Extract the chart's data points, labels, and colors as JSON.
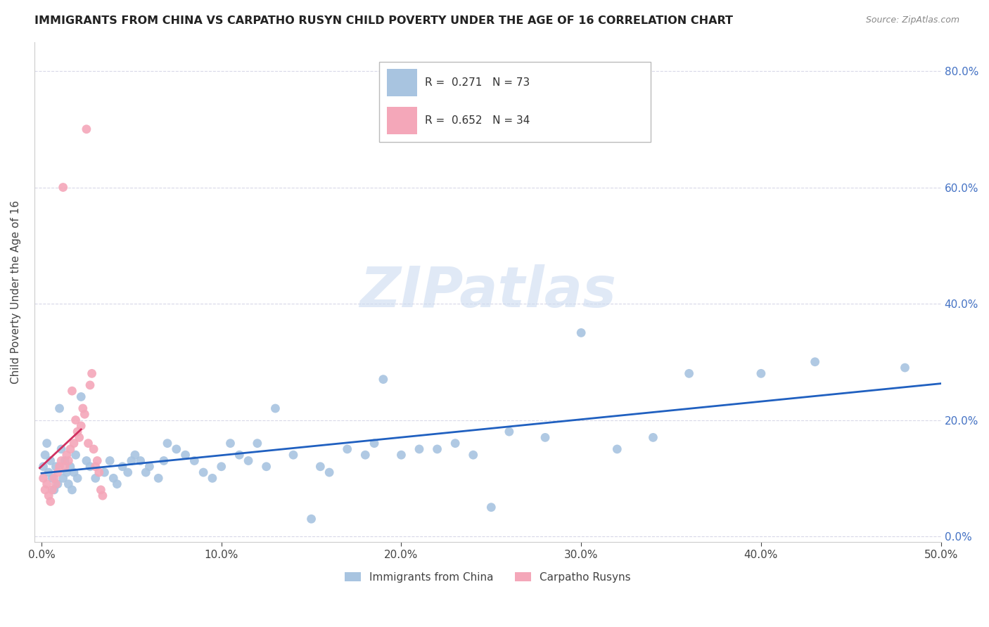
{
  "title": "IMMIGRANTS FROM CHINA VS CARPATHO RUSYN CHILD POVERTY UNDER THE AGE OF 16 CORRELATION CHART",
  "source": "Source: ZipAtlas.com",
  "ylabel_label": "Child Poverty Under the Age of 16",
  "legend_label1": "Immigrants from China",
  "legend_label2": "Carpatho Rusyns",
  "R1": 0.271,
  "N1": 73,
  "R2": 0.652,
  "N2": 34,
  "color_china": "#a8c4e0",
  "color_rusyn": "#f4a7b9",
  "trendline_china": "#2060c0",
  "trendline_rusyn": "#d03060",
  "watermark": "ZIPatlas",
  "xlim": [
    0.0,
    0.5
  ],
  "ylim": [
    0.0,
    0.85
  ],
  "china_scatter_x": [
    0.001,
    0.002,
    0.003,
    0.004,
    0.005,
    0.006,
    0.007,
    0.008,
    0.009,
    0.01,
    0.011,
    0.012,
    0.013,
    0.014,
    0.015,
    0.016,
    0.017,
    0.018,
    0.019,
    0.02,
    0.022,
    0.025,
    0.027,
    0.03,
    0.035,
    0.038,
    0.04,
    0.042,
    0.045,
    0.048,
    0.05,
    0.052,
    0.055,
    0.058,
    0.06,
    0.065,
    0.068,
    0.07,
    0.075,
    0.08,
    0.085,
    0.09,
    0.095,
    0.1,
    0.105,
    0.11,
    0.115,
    0.12,
    0.125,
    0.13,
    0.14,
    0.15,
    0.155,
    0.16,
    0.17,
    0.18,
    0.185,
    0.19,
    0.2,
    0.21,
    0.22,
    0.23,
    0.24,
    0.25,
    0.26,
    0.28,
    0.3,
    0.32,
    0.34,
    0.36,
    0.4,
    0.43,
    0.48
  ],
  "china_scatter_y": [
    0.12,
    0.14,
    0.16,
    0.11,
    0.13,
    0.1,
    0.08,
    0.12,
    0.09,
    0.22,
    0.15,
    0.1,
    0.13,
    0.11,
    0.09,
    0.12,
    0.08,
    0.11,
    0.14,
    0.1,
    0.24,
    0.13,
    0.12,
    0.1,
    0.11,
    0.13,
    0.1,
    0.09,
    0.12,
    0.11,
    0.13,
    0.14,
    0.13,
    0.11,
    0.12,
    0.1,
    0.13,
    0.16,
    0.15,
    0.14,
    0.13,
    0.11,
    0.1,
    0.12,
    0.16,
    0.14,
    0.13,
    0.16,
    0.12,
    0.22,
    0.14,
    0.03,
    0.12,
    0.11,
    0.15,
    0.14,
    0.16,
    0.27,
    0.14,
    0.15,
    0.15,
    0.16,
    0.14,
    0.05,
    0.18,
    0.17,
    0.35,
    0.15,
    0.17,
    0.28,
    0.28,
    0.3,
    0.29
  ],
  "rusyn_scatter_x": [
    0.001,
    0.002,
    0.003,
    0.004,
    0.005,
    0.006,
    0.007,
    0.008,
    0.009,
    0.01,
    0.011,
    0.012,
    0.013,
    0.014,
    0.015,
    0.016,
    0.017,
    0.018,
    0.019,
    0.02,
    0.021,
    0.022,
    0.023,
    0.024,
    0.025,
    0.026,
    0.027,
    0.028,
    0.029,
    0.03,
    0.031,
    0.032,
    0.033,
    0.034
  ],
  "rusyn_scatter_y": [
    0.1,
    0.08,
    0.09,
    0.07,
    0.06,
    0.08,
    0.1,
    0.09,
    0.11,
    0.12,
    0.13,
    0.6,
    0.12,
    0.14,
    0.13,
    0.15,
    0.25,
    0.16,
    0.2,
    0.18,
    0.17,
    0.19,
    0.22,
    0.21,
    0.7,
    0.16,
    0.26,
    0.28,
    0.15,
    0.12,
    0.13,
    0.11,
    0.08,
    0.07
  ]
}
